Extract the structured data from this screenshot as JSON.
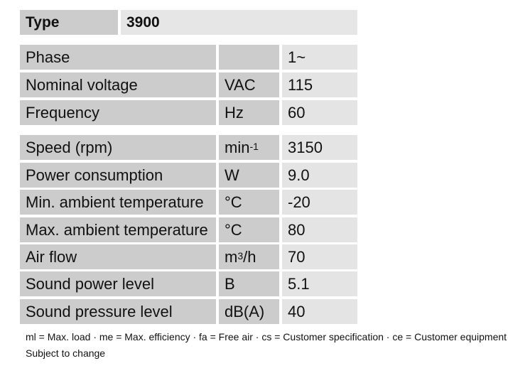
{
  "type_row": {
    "label": "Type",
    "value": "3900"
  },
  "groups": [
    [
      {
        "label": "Phase",
        "unit": "",
        "value": "1~"
      },
      {
        "label": "Nominal voltage",
        "unit": "VAC",
        "value": "115"
      },
      {
        "label": "Frequency",
        "unit": "Hz",
        "value": "60"
      }
    ],
    [
      {
        "label": "Speed (rpm)",
        "unit": "min",
        "unit_sup": "-1",
        "value": "3150"
      },
      {
        "label": "Power consumption",
        "unit": "W",
        "value": "9.0"
      },
      {
        "label": "Min. ambient temperature",
        "unit": "°C",
        "value": "-20"
      },
      {
        "label": "Max. ambient temperature",
        "unit": "°C",
        "value": "80"
      },
      {
        "label": "Air flow",
        "unit": "m",
        "unit_sup": "3",
        "unit_suffix": "/h",
        "value": "70"
      },
      {
        "label": "Sound power level",
        "unit": "B",
        "value": "5.1"
      },
      {
        "label": "Sound pressure level",
        "unit": "dB(A)",
        "value": "40"
      }
    ]
  ],
  "footer": {
    "legend": "ml = Max. load · me = Max. efficiency · fa = Free air · cs = Customer specification · ce = Customer equipment",
    "note": "Subject to change"
  }
}
